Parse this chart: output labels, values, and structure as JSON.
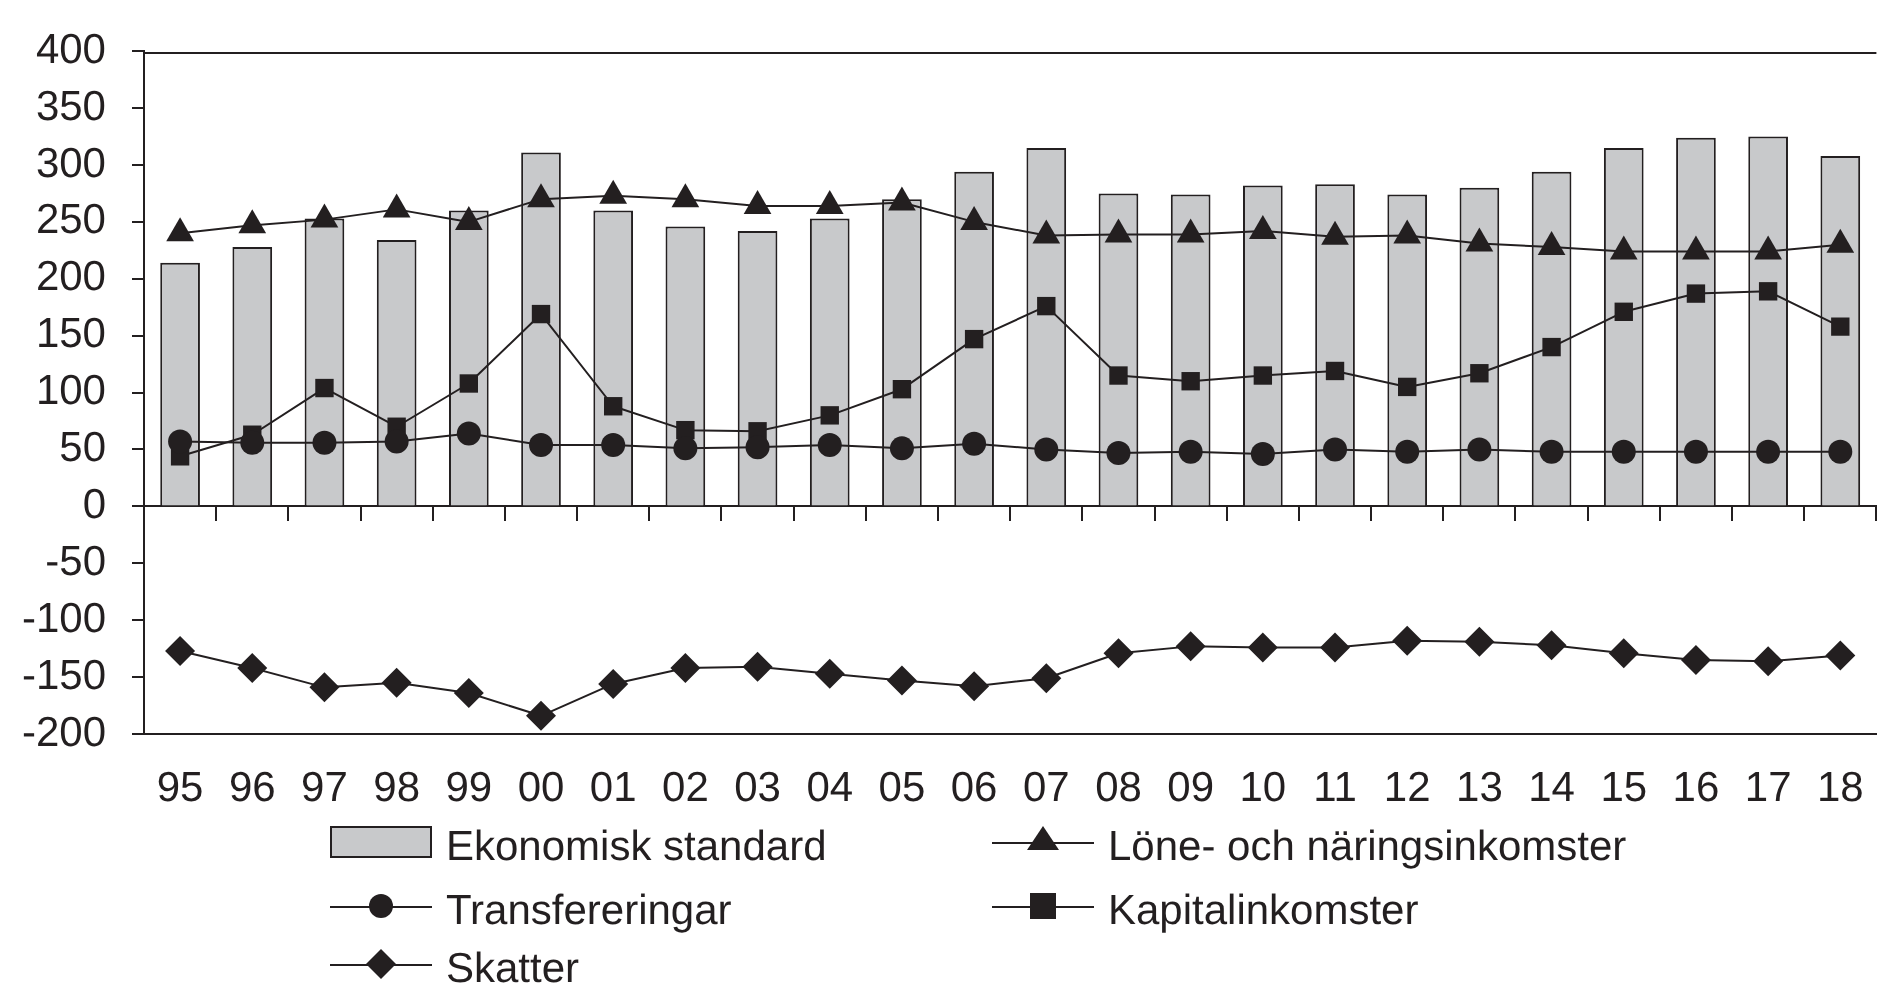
{
  "chart_data": {
    "type": "bar",
    "categories": [
      "95",
      "96",
      "97",
      "98",
      "99",
      "00",
      "01",
      "02",
      "03",
      "04",
      "05",
      "06",
      "07",
      "08",
      "09",
      "10",
      "11",
      "12",
      "13",
      "14",
      "15",
      "16",
      "17",
      "18"
    ],
    "series": [
      {
        "name": "Ekonomisk standard",
        "color": "#c8c9cb",
        "values": [
          214,
          228,
          253,
          234,
          260,
          311,
          260,
          246,
          242,
          253,
          270,
          294,
          315,
          275,
          274,
          282,
          283,
          274,
          280,
          294,
          315,
          324,
          325,
          308
        ]
      },
      {
        "name": "Löne- och näringsinkomster",
        "type": "line",
        "marker": "triangle",
        "color": "#231f20",
        "values": [
          240,
          247,
          252,
          261,
          250,
          270,
          273,
          270,
          264,
          264,
          267,
          250,
          238,
          239,
          239,
          242,
          237,
          238,
          231,
          228,
          224,
          224,
          224,
          230
        ]
      },
      {
        "name": "Transfereringar",
        "type": "line",
        "marker": "circle",
        "color": "#231f20",
        "values": [
          57,
          56,
          56,
          57,
          64,
          54,
          54,
          51,
          52,
          54,
          51,
          55,
          50,
          47,
          48,
          46,
          50,
          48,
          50,
          48,
          48,
          48,
          48,
          48
        ]
      },
      {
        "name": "Kapitalinkomster",
        "type": "line",
        "marker": "square",
        "color": "#231f20",
        "values": [
          44,
          63,
          104,
          70,
          108,
          169,
          88,
          67,
          66,
          80,
          103,
          147,
          176,
          115,
          110,
          115,
          119,
          105,
          117,
          140,
          171,
          187,
          189,
          158
        ]
      },
      {
        "name": "Skatter",
        "type": "line",
        "marker": "diamond",
        "color": "#231f20",
        "values": [
          -127,
          -142,
          -159,
          -155,
          -164,
          -184,
          -156,
          -142,
          -141,
          -147,
          -153,
          -158,
          -151,
          -129,
          -123,
          -124,
          -124,
          -118,
          -119,
          -122,
          -129,
          -135,
          -136,
          -131
        ]
      }
    ],
    "ylim": [
      -200,
      400
    ],
    "yticks": [
      -200,
      -150,
      -100,
      -50,
      0,
      50,
      100,
      150,
      200,
      250,
      300,
      350,
      400
    ],
    "legend": "bottom"
  }
}
